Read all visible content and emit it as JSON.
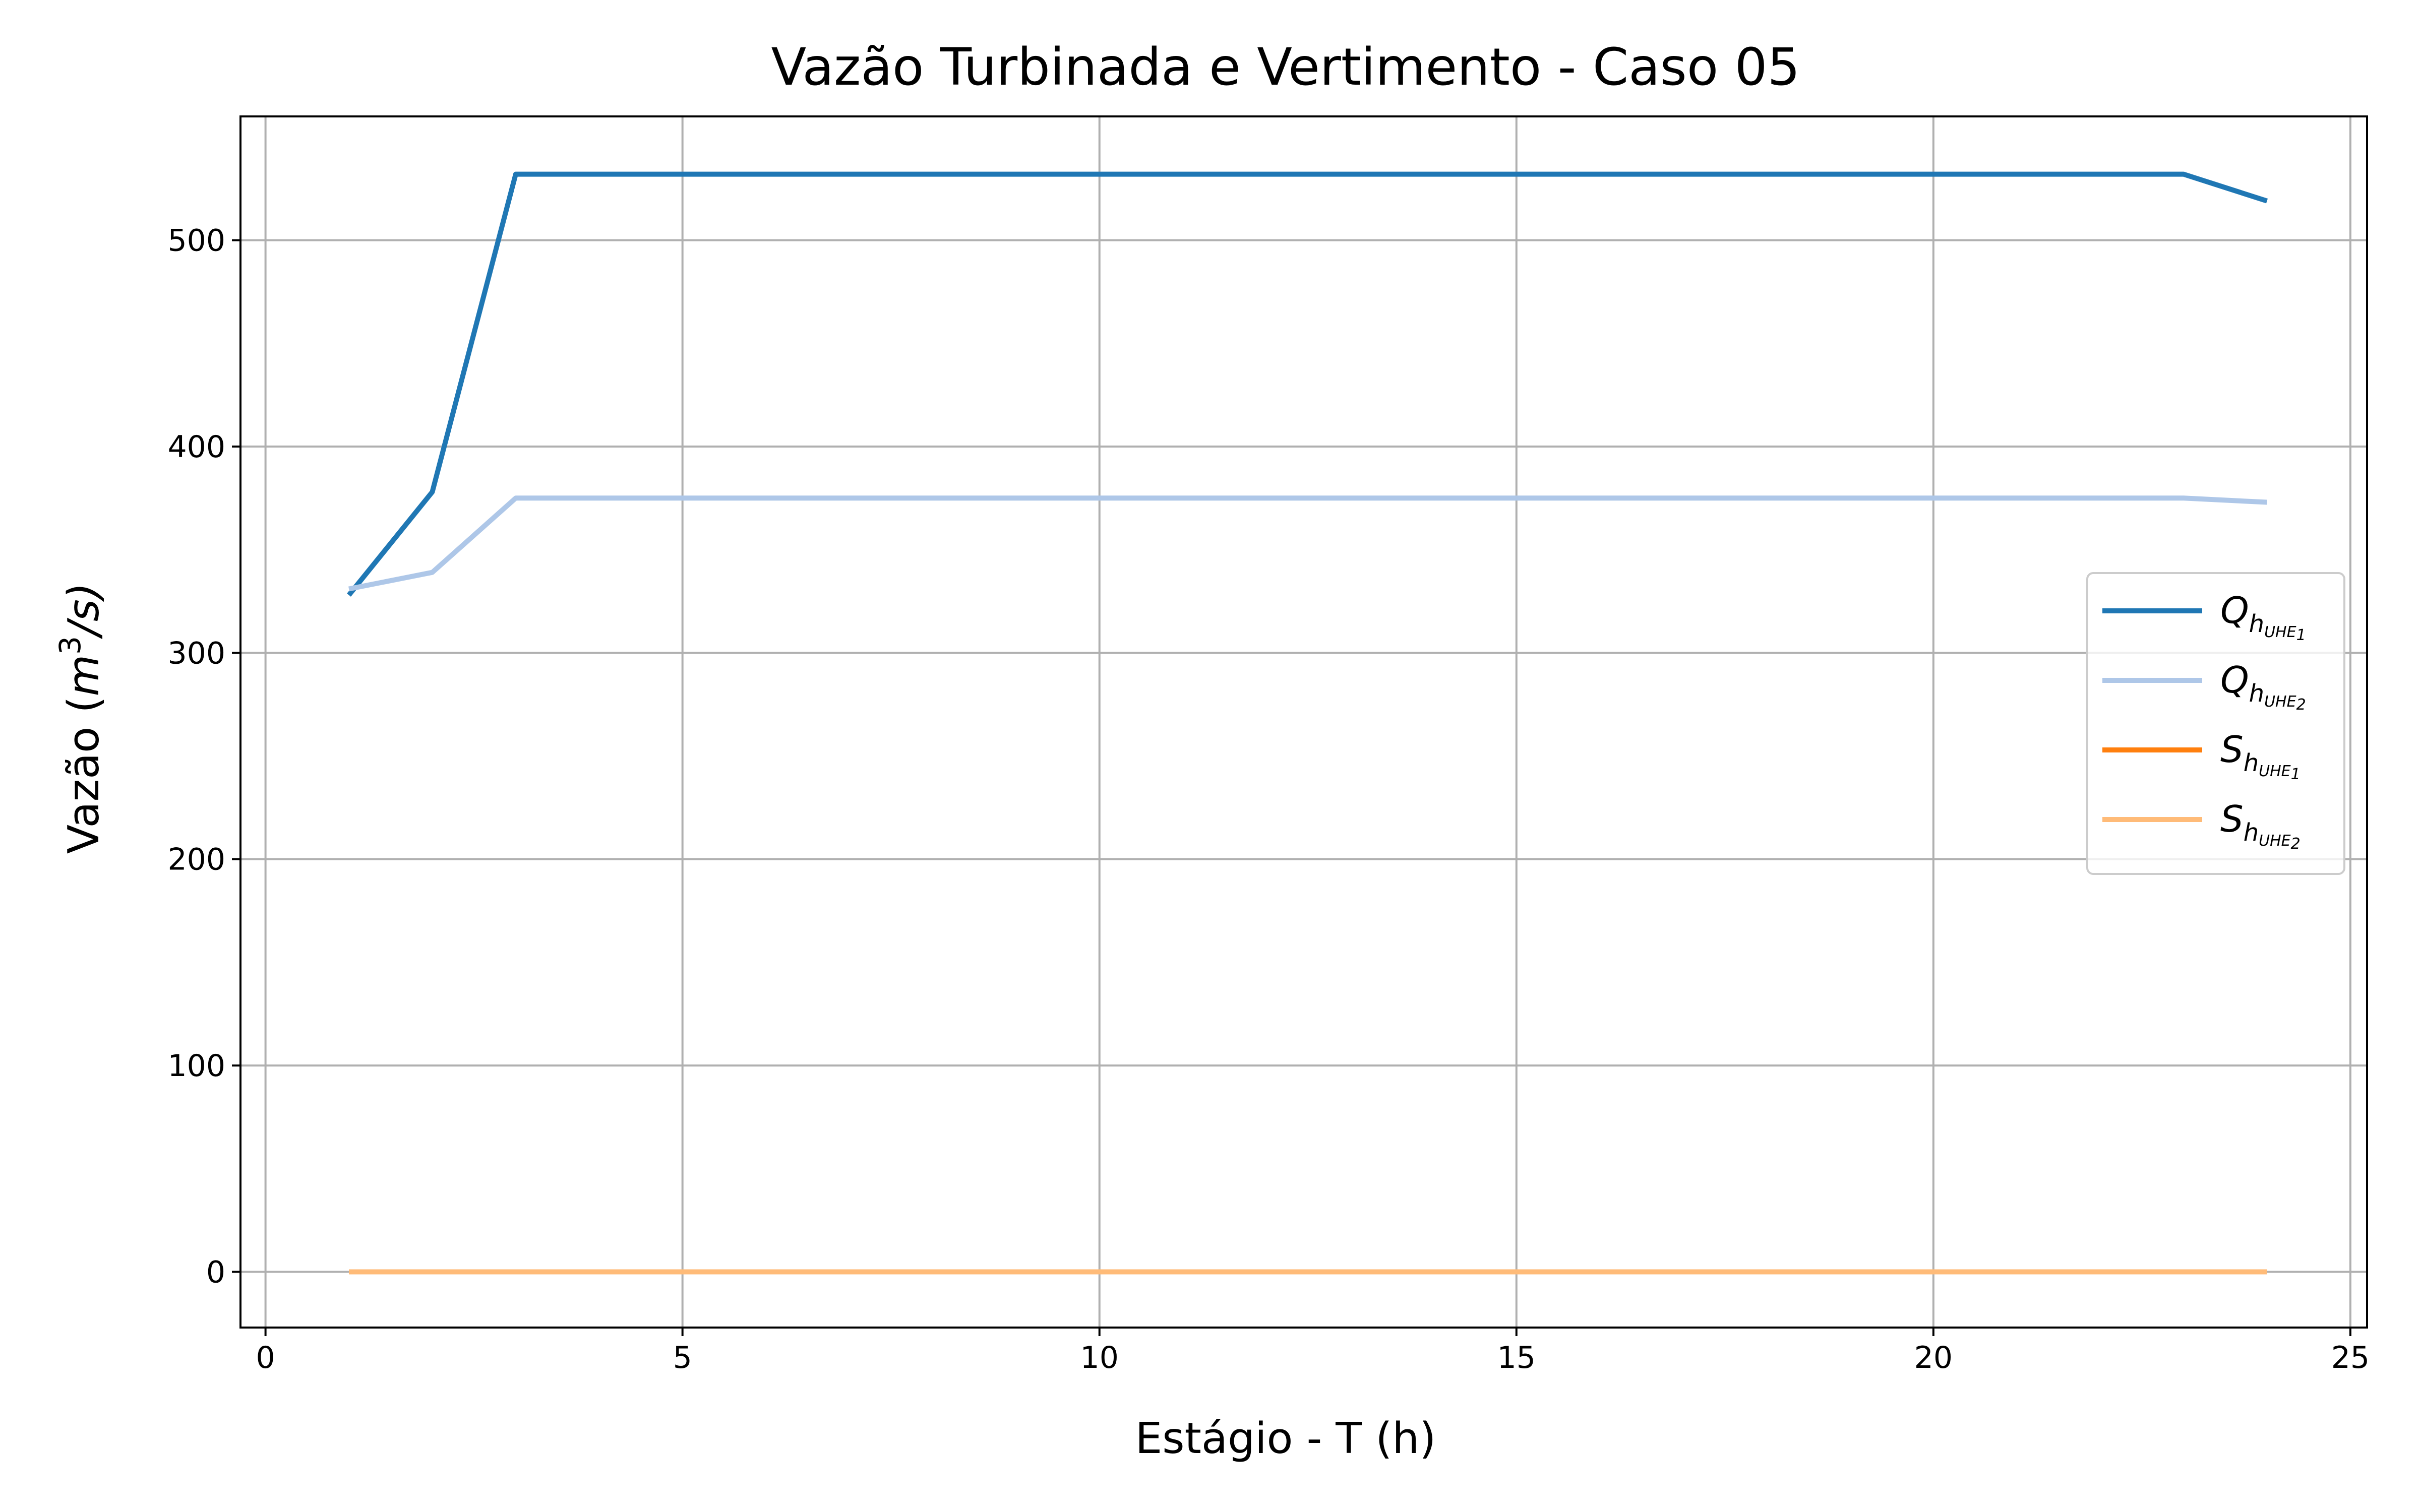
{
  "chart_data": {
    "type": "line",
    "title": "Vazão Turbinada e Vertimento - Caso 05",
    "xlabel": "Estágio - T (h)",
    "ylabel": {
      "prefix": "Vazão (",
      "base": "m",
      "exponent": "3",
      "suffix": "/s)"
    },
    "xlim": [
      -0.3,
      25.2
    ],
    "ylim": [
      -27,
      560
    ],
    "xticks": [
      0,
      5,
      10,
      15,
      20,
      25
    ],
    "yticks": [
      0,
      100,
      200,
      300,
      400,
      500
    ],
    "grid": true,
    "legend_position": "center-right",
    "x": [
      1,
      2,
      3,
      4,
      5,
      6,
      7,
      8,
      9,
      10,
      11,
      12,
      13,
      14,
      15,
      16,
      17,
      18,
      19,
      20,
      21,
      22,
      23,
      24
    ],
    "series": [
      {
        "name": "Q",
        "sub": "h",
        "subsub": "UHE",
        "index": "1",
        "color": "#1f77b4",
        "values": [
          328,
          378,
          532,
          532,
          532,
          532,
          532,
          532,
          532,
          532,
          532,
          532,
          532,
          532,
          532,
          532,
          532,
          532,
          532,
          532,
          532,
          532,
          532,
          519
        ]
      },
      {
        "name": "Q",
        "sub": "h",
        "subsub": "UHE",
        "index": "2",
        "color": "#aec7e8",
        "values": [
          331,
          339,
          375,
          375,
          375,
          375,
          375,
          375,
          375,
          375,
          375,
          375,
          375,
          375,
          375,
          375,
          375,
          375,
          375,
          375,
          375,
          375,
          375,
          373
        ]
      },
      {
        "name": "S",
        "sub": "h",
        "subsub": "UHE",
        "index": "1",
        "color": "#ff7f0e",
        "values": [
          0,
          0,
          0,
          0,
          0,
          0,
          0,
          0,
          0,
          0,
          0,
          0,
          0,
          0,
          0,
          0,
          0,
          0,
          0,
          0,
          0,
          0,
          0,
          0
        ]
      },
      {
        "name": "S",
        "sub": "h",
        "subsub": "UHE",
        "index": "2",
        "color": "#ffbb78",
        "values": [
          0,
          0,
          0,
          0,
          0,
          0,
          0,
          0,
          0,
          0,
          0,
          0,
          0,
          0,
          0,
          0,
          0,
          0,
          0,
          0,
          0,
          0,
          0,
          0
        ]
      }
    ]
  }
}
